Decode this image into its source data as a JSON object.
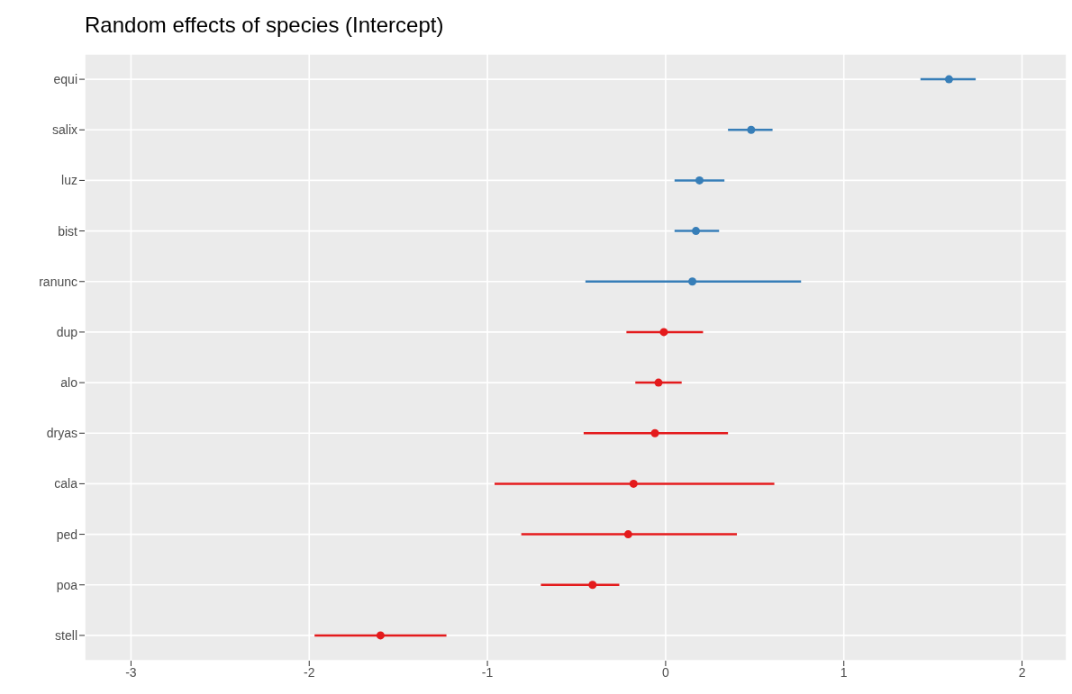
{
  "chart_data": {
    "type": "scatter",
    "title": "Random effects of species (Intercept)",
    "categories": [
      "equi",
      "salix",
      "luz",
      "bist",
      "ranunc",
      "dup",
      "alo",
      "dryas",
      "cala",
      "ped",
      "poa",
      "stell"
    ],
    "series": [
      {
        "color": "#377eb8",
        "values": [
          1.59,
          0.48,
          0.19,
          0.17,
          0.15,
          null,
          null,
          null,
          null,
          null,
          null,
          null
        ],
        "errors": [
          [
            1.43,
            1.74
          ],
          [
            0.35,
            0.6
          ],
          [
            0.05,
            0.33
          ],
          [
            0.05,
            0.3
          ],
          [
            -0.45,
            0.76
          ],
          null,
          null,
          null,
          null,
          null,
          null,
          null
        ]
      },
      {
        "color": "#e41a1c",
        "values": [
          null,
          null,
          null,
          null,
          null,
          -0.01,
          -0.04,
          -0.06,
          -0.18,
          -0.21,
          -0.41,
          -1.6
        ],
        "errors": [
          null,
          null,
          null,
          null,
          null,
          [
            -0.22,
            0.21
          ],
          [
            -0.17,
            0.09
          ],
          [
            -0.46,
            0.35
          ],
          [
            -0.96,
            0.61
          ],
          [
            -0.81,
            0.4
          ],
          [
            -0.7,
            -0.26
          ],
          [
            -1.97,
            -1.23
          ]
        ]
      }
    ],
    "orientation": "horizontal",
    "xlim": [
      -3.26,
      2.25
    ],
    "xticks": [
      -3,
      -2,
      -1,
      0,
      1,
      2
    ],
    "grid": true,
    "marker": "circle",
    "legend": false
  }
}
